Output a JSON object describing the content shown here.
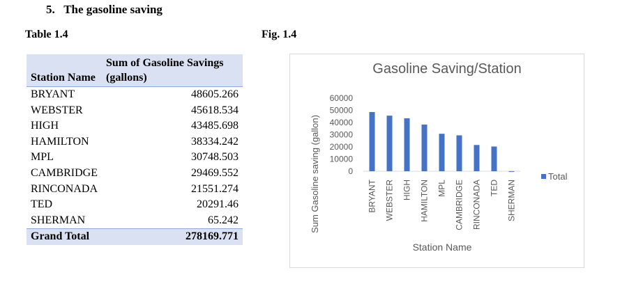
{
  "section": {
    "number": "5.",
    "title": "The gasoline saving"
  },
  "table": {
    "caption": "Table 1.4",
    "headers": {
      "station": "Station Name",
      "savings": "Sum of Gasoline Savings (gallons)"
    },
    "rows": [
      {
        "station": "BRYANT",
        "value": "48605.266"
      },
      {
        "station": "WEBSTER",
        "value": "45618.534"
      },
      {
        "station": "HIGH",
        "value": "43485.698"
      },
      {
        "station": "HAMILTON",
        "value": "38334.242"
      },
      {
        "station": "MPL",
        "value": "30748.503"
      },
      {
        "station": "CAMBRIDGE",
        "value": "29469.552"
      },
      {
        "station": "RINCONADA",
        "value": "21551.274"
      },
      {
        "station": "TED",
        "value": "20291.46"
      },
      {
        "station": "SHERMAN",
        "value": "65.242"
      }
    ],
    "total": {
      "label": "Grand Total",
      "value": "278169.771"
    }
  },
  "figure": {
    "caption": "Fig. 1.4"
  },
  "chart_data": {
    "type": "bar",
    "title": "Gasoline Saving/Station",
    "xlabel": "Station Name",
    "ylabel": "Sum Gasoline saving (gallon)",
    "categories": [
      "BRYANT",
      "WEBSTER",
      "HIGH",
      "HAMILTON",
      "MPL",
      "CAMBRIDGE",
      "RINCONADA",
      "TED",
      "SHERMAN"
    ],
    "series": [
      {
        "name": "Total",
        "color": "#4472c4",
        "values": [
          48605.266,
          45618.534,
          43485.698,
          38334.242,
          30748.503,
          29469.552,
          21551.274,
          20291.46,
          65.242
        ]
      }
    ],
    "ylim": [
      0,
      60000
    ],
    "yticks": [
      "0",
      "10000",
      "20000",
      "30000",
      "40000",
      "50000",
      "60000"
    ],
    "grid": false,
    "legend": "right"
  }
}
